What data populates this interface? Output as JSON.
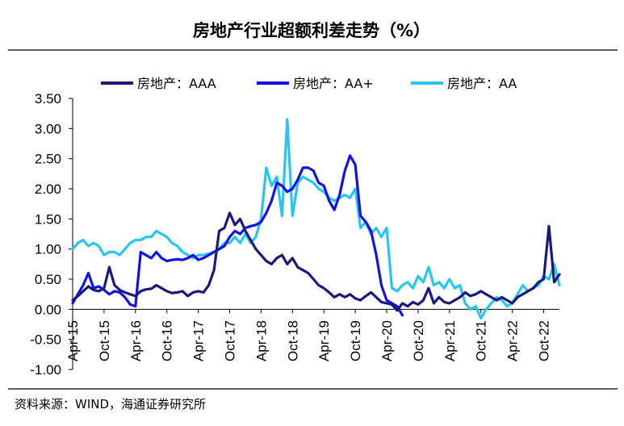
{
  "chart_data": {
    "type": "line",
    "title": "房地产行业超额利差走势（%）",
    "source": "资料来源：WIND，海通证券研究所",
    "x_tick_labels": [
      "Apr-15",
      "Oct-15",
      "Apr-16",
      "Oct-16",
      "Apr-17",
      "Oct-17",
      "Apr-18",
      "Oct-18",
      "Apr-19",
      "Oct-19",
      "Apr-20",
      "Oct-20",
      "Apr-21",
      "Oct-21",
      "Apr-22",
      "Oct-22"
    ],
    "x_range": [
      "2015-04",
      "2023-01"
    ],
    "ylim": [
      -1.0,
      3.5
    ],
    "y_ticks": [
      "3.50",
      "3.00",
      "2.50",
      "2.00",
      "1.50",
      "1.00",
      "0.50",
      "0.00",
      "-0.50",
      "-1.00"
    ],
    "grid": false,
    "legend_position": "top",
    "series": [
      {
        "name": "房地产：AAA",
        "color": "#1b1a7a",
        "points": [
          [
            "2015-04",
            0.15
          ],
          [
            "2015-05",
            0.22
          ],
          [
            "2015-06",
            0.3
          ],
          [
            "2015-07",
            0.38
          ],
          [
            "2015-08",
            0.32
          ],
          [
            "2015-09",
            0.3
          ],
          [
            "2015-10",
            0.35
          ],
          [
            "2015-11",
            0.7
          ],
          [
            "2015-12",
            0.4
          ],
          [
            "2016-01",
            0.32
          ],
          [
            "2016-02",
            0.28
          ],
          [
            "2016-03",
            0.25
          ],
          [
            "2016-04",
            0.22
          ],
          [
            "2016-05",
            0.3
          ],
          [
            "2016-06",
            0.33
          ],
          [
            "2016-07",
            0.34
          ],
          [
            "2016-08",
            0.4
          ],
          [
            "2016-09",
            0.35
          ],
          [
            "2016-10",
            0.3
          ],
          [
            "2016-11",
            0.27
          ],
          [
            "2016-12",
            0.28
          ],
          [
            "2017-01",
            0.3
          ],
          [
            "2017-02",
            0.22
          ],
          [
            "2017-03",
            0.28
          ],
          [
            "2017-04",
            0.3
          ],
          [
            "2017-05",
            0.28
          ],
          [
            "2017-06",
            0.4
          ],
          [
            "2017-07",
            0.65
          ],
          [
            "2017-08",
            1.3
          ],
          [
            "2017-09",
            1.35
          ],
          [
            "2017-10",
            1.6
          ],
          [
            "2017-11",
            1.4
          ],
          [
            "2017-12",
            1.5
          ],
          [
            "2018-01",
            1.3
          ],
          [
            "2018-02",
            1.15
          ],
          [
            "2018-03",
            1.0
          ],
          [
            "2018-04",
            0.9
          ],
          [
            "2018-05",
            0.8
          ],
          [
            "2018-06",
            0.75
          ],
          [
            "2018-07",
            0.85
          ],
          [
            "2018-08",
            0.9
          ],
          [
            "2018-09",
            0.75
          ],
          [
            "2018-10",
            0.85
          ],
          [
            "2018-11",
            0.7
          ],
          [
            "2018-12",
            0.65
          ],
          [
            "2019-01",
            0.6
          ],
          [
            "2019-02",
            0.5
          ],
          [
            "2019-03",
            0.4
          ],
          [
            "2019-04",
            0.35
          ],
          [
            "2019-05",
            0.28
          ],
          [
            "2019-06",
            0.2
          ],
          [
            "2019-07",
            0.25
          ],
          [
            "2019-08",
            0.2
          ],
          [
            "2019-09",
            0.25
          ],
          [
            "2019-10",
            0.18
          ],
          [
            "2019-11",
            0.15
          ],
          [
            "2019-12",
            0.22
          ],
          [
            "2020-01",
            0.28
          ],
          [
            "2020-02",
            0.2
          ],
          [
            "2020-03",
            0.12
          ],
          [
            "2020-04",
            0.1
          ],
          [
            "2020-05",
            0.08
          ],
          [
            "2020-06",
            -0.02
          ],
          [
            "2020-07",
            0.1
          ],
          [
            "2020-08",
            0.05
          ],
          [
            "2020-09",
            0.12
          ],
          [
            "2020-10",
            0.08
          ],
          [
            "2020-11",
            0.15
          ],
          [
            "2020-12",
            0.35
          ],
          [
            "2021-01",
            0.1
          ],
          [
            "2021-02",
            0.2
          ],
          [
            "2021-03",
            0.12
          ],
          [
            "2021-04",
            0.1
          ],
          [
            "2021-05",
            0.15
          ],
          [
            "2021-06",
            0.2
          ],
          [
            "2021-07",
            0.28
          ],
          [
            "2021-08",
            0.22
          ],
          [
            "2021-09",
            0.25
          ],
          [
            "2021-10",
            0.3
          ],
          [
            "2021-11",
            0.25
          ],
          [
            "2021-12",
            0.2
          ],
          [
            "2022-01",
            0.15
          ],
          [
            "2022-02",
            0.2
          ],
          [
            "2022-03",
            0.15
          ],
          [
            "2022-04",
            0.1
          ],
          [
            "2022-05",
            0.2
          ],
          [
            "2022-06",
            0.25
          ],
          [
            "2022-07",
            0.3
          ],
          [
            "2022-08",
            0.35
          ],
          [
            "2022-09",
            0.45
          ],
          [
            "2022-10",
            0.5
          ],
          [
            "2022-11",
            1.38
          ],
          [
            "2022-12",
            0.45
          ],
          [
            "2023-01",
            0.58
          ]
        ]
      },
      {
        "name": "房地产：AA+",
        "color": "#1212e6",
        "points": [
          [
            "2015-04",
            0.1
          ],
          [
            "2015-05",
            0.25
          ],
          [
            "2015-06",
            0.4
          ],
          [
            "2015-07",
            0.6
          ],
          [
            "2015-08",
            0.35
          ],
          [
            "2015-09",
            0.38
          ],
          [
            "2015-10",
            0.32
          ],
          [
            "2015-11",
            0.25
          ],
          [
            "2015-12",
            0.3
          ],
          [
            "2016-01",
            0.28
          ],
          [
            "2016-02",
            0.2
          ],
          [
            "2016-03",
            0.08
          ],
          [
            "2016-04",
            0.05
          ],
          [
            "2016-05",
            0.95
          ],
          [
            "2016-06",
            0.9
          ],
          [
            "2016-07",
            0.85
          ],
          [
            "2016-08",
            0.95
          ],
          [
            "2016-09",
            0.85
          ],
          [
            "2016-10",
            0.8
          ],
          [
            "2016-11",
            0.82
          ],
          [
            "2016-12",
            0.83
          ],
          [
            "2017-01",
            0.82
          ],
          [
            "2017-02",
            0.85
          ],
          [
            "2017-03",
            0.9
          ],
          [
            "2017-04",
            0.82
          ],
          [
            "2017-05",
            0.85
          ],
          [
            "2017-06",
            0.9
          ],
          [
            "2017-07",
            0.95
          ],
          [
            "2017-08",
            1.0
          ],
          [
            "2017-09",
            1.05
          ],
          [
            "2017-10",
            1.2
          ],
          [
            "2017-11",
            1.3
          ],
          [
            "2017-12",
            1.25
          ],
          [
            "2018-01",
            1.35
          ],
          [
            "2018-02",
            1.38
          ],
          [
            "2018-03",
            1.4
          ],
          [
            "2018-04",
            1.45
          ],
          [
            "2018-05",
            1.6
          ],
          [
            "2018-06",
            1.8
          ],
          [
            "2018-07",
            2.1
          ],
          [
            "2018-08",
            2.05
          ],
          [
            "2018-09",
            1.95
          ],
          [
            "2018-10",
            2.0
          ],
          [
            "2018-11",
            2.15
          ],
          [
            "2018-12",
            2.35
          ],
          [
            "2019-01",
            2.35
          ],
          [
            "2019-02",
            2.3
          ],
          [
            "2019-03",
            2.1
          ],
          [
            "2019-04",
            2.05
          ],
          [
            "2019-05",
            1.8
          ],
          [
            "2019-06",
            1.65
          ],
          [
            "2019-07",
            1.9
          ],
          [
            "2019-08",
            2.3
          ],
          [
            "2019-09",
            2.55
          ],
          [
            "2019-10",
            2.4
          ],
          [
            "2019-11",
            1.55
          ],
          [
            "2019-12",
            1.45
          ],
          [
            "2020-01",
            1.3
          ],
          [
            "2020-02",
            0.9
          ],
          [
            "2020-03",
            0.4
          ],
          [
            "2020-04",
            0.15
          ],
          [
            "2020-05",
            0.1
          ],
          [
            "2020-06",
            0.05
          ],
          [
            "2020-07",
            -0.1
          ]
        ]
      },
      {
        "name": "房地产：AA",
        "color": "#28c5ef",
        "points": [
          [
            "2015-04",
            1.0
          ],
          [
            "2015-05",
            1.1
          ],
          [
            "2015-06",
            1.15
          ],
          [
            "2015-07",
            1.05
          ],
          [
            "2015-08",
            1.1
          ],
          [
            "2015-09",
            1.05
          ],
          [
            "2015-10",
            0.9
          ],
          [
            "2015-11",
            0.95
          ],
          [
            "2015-12",
            0.95
          ],
          [
            "2016-01",
            0.9
          ],
          [
            "2016-02",
            1.0
          ],
          [
            "2016-03",
            1.1
          ],
          [
            "2016-04",
            1.15
          ],
          [
            "2016-05",
            1.15
          ],
          [
            "2016-06",
            1.2
          ],
          [
            "2016-07",
            1.2
          ],
          [
            "2016-08",
            1.3
          ],
          [
            "2016-09",
            1.25
          ],
          [
            "2016-10",
            1.2
          ],
          [
            "2016-11",
            1.1
          ],
          [
            "2016-12",
            1.05
          ],
          [
            "2017-01",
            0.95
          ],
          [
            "2017-02",
            0.9
          ],
          [
            "2017-03",
            0.85
          ],
          [
            "2017-04",
            0.9
          ],
          [
            "2017-05",
            0.9
          ],
          [
            "2017-06",
            0.92
          ],
          [
            "2017-07",
            0.95
          ],
          [
            "2017-08",
            1.0
          ],
          [
            "2017-09",
            1.1
          ],
          [
            "2017-10",
            1.1
          ],
          [
            "2017-11",
            1.2
          ],
          [
            "2017-12",
            1.1
          ],
          [
            "2018-01",
            1.25
          ],
          [
            "2018-02",
            1.1
          ],
          [
            "2018-03",
            1.2
          ],
          [
            "2018-04",
            1.5
          ],
          [
            "2018-05",
            2.35
          ],
          [
            "2018-06",
            2.05
          ],
          [
            "2018-07",
            2.2
          ],
          [
            "2018-08",
            1.55
          ],
          [
            "2018-09",
            3.15
          ],
          [
            "2018-10",
            1.55
          ],
          [
            "2018-11",
            2.1
          ],
          [
            "2018-12",
            2.2
          ],
          [
            "2019-01",
            2.15
          ],
          [
            "2019-02",
            2.1
          ],
          [
            "2019-03",
            2.0
          ],
          [
            "2019-04",
            1.95
          ],
          [
            "2019-05",
            1.85
          ],
          [
            "2019-06",
            1.8
          ],
          [
            "2019-07",
            1.85
          ],
          [
            "2019-08",
            1.9
          ],
          [
            "2019-09",
            1.85
          ],
          [
            "2019-10",
            2.0
          ],
          [
            "2019-11",
            1.35
          ],
          [
            "2019-12",
            1.45
          ],
          [
            "2020-01",
            1.25
          ],
          [
            "2020-02",
            1.35
          ],
          [
            "2020-03",
            1.2
          ],
          [
            "2020-04",
            1.35
          ],
          [
            "2020-05",
            0.35
          ],
          [
            "2020-06",
            0.3
          ],
          [
            "2020-07",
            0.4
          ],
          [
            "2020-08",
            0.45
          ],
          [
            "2020-09",
            0.35
          ],
          [
            "2020-10",
            0.55
          ],
          [
            "2020-11",
            0.45
          ],
          [
            "2020-12",
            0.7
          ],
          [
            "2021-01",
            0.4
          ],
          [
            "2021-02",
            0.45
          ],
          [
            "2021-03",
            0.35
          ],
          [
            "2021-04",
            0.5
          ],
          [
            "2021-05",
            0.35
          ],
          [
            "2021-06",
            0.4
          ],
          [
            "2021-07",
            0.1
          ],
          [
            "2021-08",
            0.0
          ],
          [
            "2021-09",
            0.05
          ],
          [
            "2021-10",
            -0.15
          ],
          [
            "2021-11",
            0.0
          ],
          [
            "2021-12",
            0.1
          ],
          [
            "2022-01",
            0.2
          ],
          [
            "2022-02",
            0.15
          ],
          [
            "2022-03",
            0.05
          ],
          [
            "2022-04",
            0.1
          ],
          [
            "2022-05",
            0.25
          ],
          [
            "2022-06",
            0.4
          ],
          [
            "2022-07",
            0.3
          ],
          [
            "2022-08",
            0.35
          ],
          [
            "2022-09",
            0.4
          ],
          [
            "2022-10",
            0.55
          ],
          [
            "2022-11",
            0.5
          ],
          [
            "2022-12",
            0.75
          ],
          [
            "2023-01",
            0.4
          ]
        ]
      }
    ]
  }
}
